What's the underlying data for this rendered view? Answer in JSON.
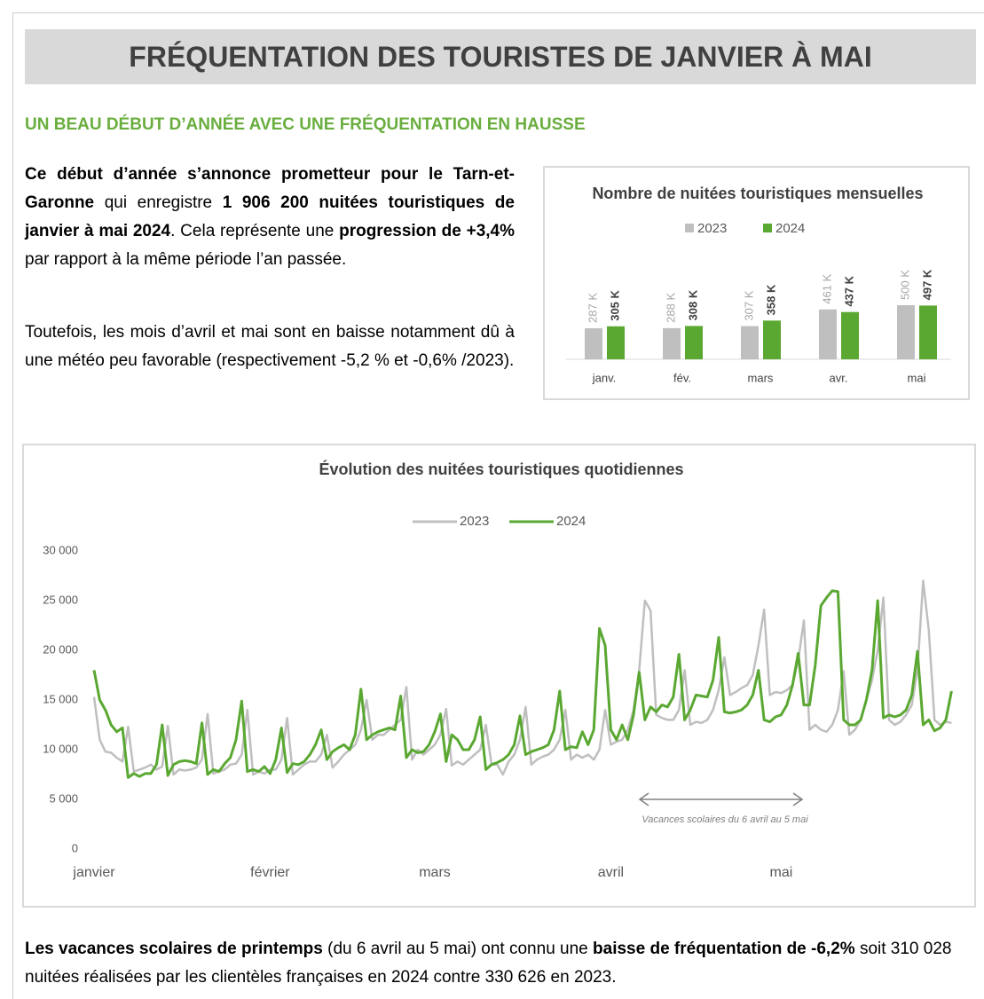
{
  "header": {
    "title": "FRÉQUENTATION DES TOURISTES DE JANVIER À MAI"
  },
  "subtitle": "UN BEAU DÉBUT D’ANNÉE AVEC UNE FRÉQUENTATION EN HAUSSE",
  "paragraphs": [
    [
      {
        "text": "Ce début d’année s’annonce prometteur pour le Tarn-et-Garonne",
        "bold": true
      },
      {
        "text": " qui enregistre ",
        "bold": false
      },
      {
        "text": "1 906 200 nuitées touristiques de janvier à mai 2024",
        "bold": true
      },
      {
        "text": ". Cela représente une ",
        "bold": false
      },
      {
        "text": "progression de +3,4%",
        "bold": true
      },
      {
        "text": " par rapport à la même période l’an passée.",
        "bold": false
      }
    ],
    [
      {
        "text": "Toutefois, les mois d’avril et mai sont en baisse notamment dû à une météo peu favorable (respectivement -5,2 % et -0,6% /2023).",
        "bold": false
      }
    ]
  ],
  "footer": [
    {
      "text": "Les vacances scolaires de printemps",
      "bold": true
    },
    {
      "text": " (du 6 avril au 5 mai) ont connu une ",
      "bold": false
    },
    {
      "text": "baisse de fréquentation de -6,2%",
      "bold": true
    },
    {
      "text": " soit 310 028 nuitées réalisées par les clientèles françaises en 2024 contre 330 626 en 2023.",
      "bold": false
    }
  ],
  "chart_data": [
    {
      "type": "bar",
      "title": "Nombre de nuitées touristiques mensuelles",
      "categories": [
        "janv.",
        "fév.",
        "mars",
        "avr.",
        "mai"
      ],
      "series": [
        {
          "name": "2023",
          "color": "#bfbfbf",
          "values": [
            287,
            288,
            307,
            461,
            500
          ],
          "value_labels": [
            "287 K",
            "288 K",
            "307 K",
            "461 K",
            "500 K"
          ]
        },
        {
          "name": "2024",
          "color": "#5aa832",
          "values": [
            305,
            308,
            358,
            437,
            497
          ],
          "value_labels": [
            "305 K",
            "308 K",
            "358 K",
            "437 K",
            "497 K"
          ]
        }
      ]
    },
    {
      "type": "line",
      "title": "Évolution des nuitées touristiques quotidiennes",
      "categories": [
        "janvier",
        null,
        null,
        null,
        null,
        null,
        null,
        null,
        null,
        null,
        null,
        null,
        null,
        null,
        null,
        null,
        null,
        null,
        null,
        null,
        null,
        null,
        null,
        null,
        null,
        null,
        null,
        null,
        null,
        null,
        null,
        "février",
        null,
        null,
        null,
        null,
        null,
        null,
        null,
        null,
        null,
        null,
        null,
        null,
        null,
        null,
        null,
        null,
        null,
        null,
        null,
        null,
        null,
        null,
        null,
        null,
        null,
        null,
        null,
        null,
        "mars",
        null,
        null,
        null,
        null,
        null,
        null,
        null,
        null,
        null,
        null,
        null,
        null,
        null,
        null,
        null,
        null,
        null,
        null,
        null,
        null,
        null,
        null,
        null,
        null,
        null,
        null,
        null,
        null,
        null,
        null,
        "avril",
        null,
        null,
        null,
        null,
        null,
        null,
        null,
        null,
        null,
        null,
        null,
        null,
        null,
        null,
        null,
        null,
        null,
        null,
        null,
        null,
        null,
        null,
        null,
        null,
        null,
        null,
        null,
        null,
        null,
        "mai",
        null,
        null,
        null,
        null,
        null,
        null,
        null,
        null,
        null,
        null,
        null,
        null,
        null,
        null,
        null,
        null,
        null,
        null,
        null,
        null,
        null,
        null,
        null,
        null,
        null,
        null,
        null,
        null,
        null,
        null
      ],
      "series": [
        {
          "name": "2023",
          "color": "#bfbfbf",
          "values": [
            15300,
            11000,
            9800,
            9700,
            9200,
            8800,
            12300,
            7800,
            8000,
            8200,
            8500,
            8000,
            8300,
            12400,
            7500,
            8000,
            7900,
            8000,
            8200,
            9000,
            13600,
            7600,
            7800,
            8000,
            8500,
            8600,
            9500,
            14000,
            7500,
            7800,
            7600,
            8000,
            8000,
            9000,
            13200,
            7500,
            8000,
            8500,
            8800,
            8800,
            9500,
            11500,
            8200,
            8800,
            9500,
            10000,
            10500,
            12000,
            15000,
            11000,
            11500,
            11500,
            12000,
            12500,
            13000,
            16300,
            9000,
            10000,
            9500,
            10000,
            10500,
            11500,
            14100,
            8400,
            8800,
            8500,
            9000,
            9500,
            10000,
            12500,
            8500,
            8500,
            7500,
            8800,
            9500,
            11000,
            14300,
            8500,
            9000,
            9300,
            9500,
            10000,
            11000,
            14000,
            9000,
            9500,
            9200,
            9500,
            9000,
            10000,
            14000,
            10500,
            10800,
            11000,
            12000,
            14000,
            18000,
            25000,
            24000,
            13500,
            13200,
            13000,
            13000,
            14000,
            18000,
            12500,
            12800,
            12700,
            13000,
            14000,
            16000,
            19300,
            15500,
            15800,
            16200,
            16500,
            17500,
            20500,
            24100,
            15500,
            15800,
            15700,
            16000,
            16500,
            19000,
            23000,
            12000,
            12500,
            12000,
            11800,
            12500,
            14000,
            17900,
            11500,
            12000,
            13000,
            15000,
            17000,
            20000,
            25300,
            13000,
            12500,
            12800,
            13500,
            14500,
            18000,
            27000,
            22000,
            13000,
            12500,
            12800,
            12700
          ]
        },
        {
          "name": "2024",
          "color": "#5aa832",
          "values": [
            18000,
            15000,
            14000,
            12500,
            11800,
            12200,
            7200,
            7600,
            7300,
            7600,
            7600,
            8500,
            12500,
            7400,
            8500,
            8800,
            8900,
            8800,
            8600,
            12700,
            7500,
            8000,
            7800,
            8600,
            9200,
            11000,
            14900,
            7800,
            8000,
            7800,
            8300,
            7600,
            9000,
            12200,
            7700,
            8600,
            8500,
            8800,
            9500,
            10500,
            12000,
            9000,
            9800,
            10200,
            10500,
            10000,
            11500,
            16100,
            11000,
            11500,
            11800,
            12000,
            12200,
            12000,
            15400,
            9200,
            10000,
            9700,
            9800,
            10500,
            11800,
            13600,
            8800,
            11500,
            11000,
            10000,
            10000,
            11000,
            13300,
            8000,
            8500,
            8700,
            9000,
            9500,
            10500,
            13400,
            9500,
            9800,
            10000,
            10200,
            10500,
            12000,
            15900,
            10000,
            10300,
            10200,
            11800,
            10500,
            12000,
            22200,
            20500,
            12000,
            11000,
            12500,
            11000,
            13500,
            17800,
            13000,
            14300,
            13800,
            14500,
            14300,
            15300,
            19600,
            13000,
            14000,
            15500,
            15400,
            15300,
            17000,
            21300,
            13800,
            13700,
            13800,
            14000,
            14500,
            15500,
            18000,
            13000,
            12800,
            13300,
            13500,
            14500,
            16500,
            19700,
            14500,
            14500,
            18500,
            24500,
            25300,
            26000,
            25900,
            13000,
            12500,
            12500,
            13000,
            15000,
            18000,
            25000,
            13200,
            13500,
            13300,
            13500,
            14000,
            15500,
            19900,
            12500,
            13000,
            11900,
            12200,
            13000,
            15900
          ]
        }
      ],
      "ylim": [
        0,
        30000
      ],
      "yticks": [
        0,
        {
          "value": 5000,
          "label": "5 000"
        },
        {
          "value": 10000,
          "label": "10 000"
        },
        {
          "value": 15000,
          "label": "15 000"
        },
        {
          "value": 20000,
          "label": "20 000"
        },
        {
          "value": 25000,
          "label": "25 000"
        },
        {
          "value": 30000,
          "label": "30 000"
        }
      ],
      "annotation": "Vacances scolaires du 6 avril au 5 mai"
    }
  ]
}
